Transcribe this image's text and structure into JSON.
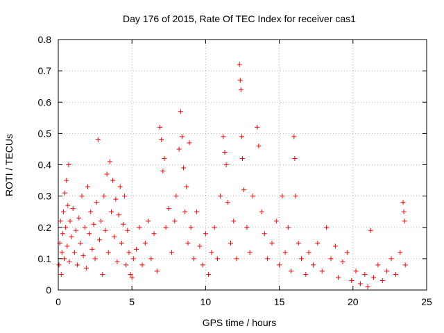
{
  "chart_data": {
    "type": "scatter",
    "title": "Day 176 of 2015, Rate Of TEC Index for receiver cas1",
    "xlabel": "GPS time / hours",
    "ylabel": "ROTI / TECUs",
    "xlim": [
      0,
      25
    ],
    "ylim": [
      0,
      0.8
    ],
    "x_ticks": [
      0,
      5,
      10,
      15,
      20,
      25
    ],
    "y_ticks": [
      0,
      0.1,
      0.2,
      0.3,
      0.4,
      0.5,
      0.6,
      0.7,
      0.8
    ],
    "x_tick_labels": [
      "0",
      "5",
      "10",
      "15",
      "20",
      "25"
    ],
    "y_tick_labels": [
      "0",
      "0.1",
      "0.2",
      "0.3",
      "0.4",
      "0.5",
      "0.6",
      "0.7",
      "0.8"
    ],
    "grid": true,
    "marker": "+",
    "series": [
      {
        "name": "ROTI",
        "color": "#ff0000",
        "points": [
          [
            0.05,
            0.08
          ],
          [
            0.1,
            0.15
          ],
          [
            0.15,
            0.22
          ],
          [
            0.2,
            0.05
          ],
          [
            0.25,
            0.12
          ],
          [
            0.3,
            0.18
          ],
          [
            0.35,
            0.25
          ],
          [
            0.4,
            0.1
          ],
          [
            0.45,
            0.31
          ],
          [
            0.5,
            0.2
          ],
          [
            0.55,
            0.35
          ],
          [
            0.6,
            0.14
          ],
          [
            0.65,
            0.27
          ],
          [
            0.7,
            0.4
          ],
          [
            0.75,
            0.09
          ],
          [
            0.8,
            0.22
          ],
          [
            0.9,
            0.17
          ],
          [
            1.0,
            0.26
          ],
          [
            1.1,
            0.12
          ],
          [
            1.2,
            0.19
          ],
          [
            1.3,
            0.08
          ],
          [
            1.4,
            0.23
          ],
          [
            1.5,
            0.15
          ],
          [
            1.6,
            0.3
          ],
          [
            1.7,
            0.11
          ],
          [
            1.8,
            0.2
          ],
          [
            1.9,
            0.07
          ],
          [
            2.0,
            0.33
          ],
          [
            2.1,
            0.18
          ],
          [
            2.2,
            0.25
          ],
          [
            2.3,
            0.13
          ],
          [
            2.4,
            0.21
          ],
          [
            2.5,
            0.1
          ],
          [
            2.6,
            0.28
          ],
          [
            2.7,
            0.48
          ],
          [
            2.8,
            0.16
          ],
          [
            2.9,
            0.22
          ],
          [
            3.0,
            0.05
          ],
          [
            3.1,
            0.3
          ],
          [
            3.2,
            0.19
          ],
          [
            3.3,
            0.37
          ],
          [
            3.4,
            0.12
          ],
          [
            3.5,
            0.41
          ],
          [
            3.6,
            0.25
          ],
          [
            3.7,
            0.35
          ],
          [
            3.8,
            0.17
          ],
          [
            3.9,
            0.29
          ],
          [
            4.0,
            0.09
          ],
          [
            4.1,
            0.24
          ],
          [
            4.2,
            0.33
          ],
          [
            4.3,
            0.15
          ],
          [
            4.4,
            0.21
          ],
          [
            4.5,
            0.3
          ],
          [
            4.6,
            0.08
          ],
          [
            4.7,
            0.19
          ],
          [
            4.8,
            0.12
          ],
          [
            4.9,
            0.05
          ],
          [
            5.0,
            0.04
          ],
          [
            5.1,
            0.1
          ],
          [
            5.3,
            0.13
          ],
          [
            5.5,
            0.2
          ],
          [
            5.7,
            0.08
          ],
          [
            5.9,
            0.15
          ],
          [
            6.1,
            0.22
          ],
          [
            6.3,
            0.1
          ],
          [
            6.5,
            0.18
          ],
          [
            6.7,
            0.06
          ],
          [
            6.9,
            0.52
          ],
          [
            7.0,
            0.48
          ],
          [
            7.1,
            0.38
          ],
          [
            7.2,
            0.42
          ],
          [
            7.3,
            0.2
          ],
          [
            7.5,
            0.26
          ],
          [
            7.7,
            0.12
          ],
          [
            7.9,
            0.22
          ],
          [
            8.0,
            0.3
          ],
          [
            8.2,
            0.45
          ],
          [
            8.3,
            0.57
          ],
          [
            8.4,
            0.49
          ],
          [
            8.5,
            0.39
          ],
          [
            8.6,
            0.25
          ],
          [
            8.7,
            0.33
          ],
          [
            8.8,
            0.15
          ],
          [
            8.9,
            0.47
          ],
          [
            9.0,
            0.2
          ],
          [
            9.2,
            0.1
          ],
          [
            9.4,
            0.25
          ],
          [
            9.6,
            0.14
          ],
          [
            9.8,
            0.08
          ],
          [
            10.0,
            0.18
          ],
          [
            10.2,
            0.05
          ],
          [
            10.4,
            0.12
          ],
          [
            10.6,
            0.2
          ],
          [
            10.8,
            0.1
          ],
          [
            11.0,
            0.3
          ],
          [
            11.2,
            0.49
          ],
          [
            11.3,
            0.44
          ],
          [
            11.4,
            0.4
          ],
          [
            11.5,
            0.28
          ],
          [
            11.7,
            0.15
          ],
          [
            11.9,
            0.22
          ],
          [
            12.1,
            0.1
          ],
          [
            12.3,
            0.72
          ],
          [
            12.35,
            0.67
          ],
          [
            12.4,
            0.64
          ],
          [
            12.45,
            0.49
          ],
          [
            12.5,
            0.42
          ],
          [
            12.6,
            0.32
          ],
          [
            12.8,
            0.2
          ],
          [
            13.0,
            0.12
          ],
          [
            13.2,
            0.3
          ],
          [
            13.5,
            0.52
          ],
          [
            13.6,
            0.46
          ],
          [
            13.8,
            0.25
          ],
          [
            14.0,
            0.18
          ],
          [
            14.2,
            0.1
          ],
          [
            14.5,
            0.15
          ],
          [
            14.8,
            0.22
          ],
          [
            15.0,
            0.08
          ],
          [
            15.2,
            0.3
          ],
          [
            15.4,
            0.12
          ],
          [
            15.6,
            0.2
          ],
          [
            15.8,
            0.06
          ],
          [
            16.0,
            0.49
          ],
          [
            16.05,
            0.42
          ],
          [
            16.1,
            0.3
          ],
          [
            16.3,
            0.15
          ],
          [
            16.5,
            0.1
          ],
          [
            16.8,
            0.05
          ],
          [
            17.0,
            0.12
          ],
          [
            17.3,
            0.08
          ],
          [
            17.6,
            0.15
          ],
          [
            17.9,
            0.06
          ],
          [
            18.2,
            0.2
          ],
          [
            18.5,
            0.1
          ],
          [
            18.8,
            0.14
          ],
          [
            19.0,
            0.04
          ],
          [
            19.3,
            0.09
          ],
          [
            19.6,
            0.12
          ],
          [
            19.9,
            0.03
          ],
          [
            20.2,
            0.06
          ],
          [
            20.5,
            0.02
          ],
          [
            20.8,
            0.05
          ],
          [
            21.0,
            0.01
          ],
          [
            21.2,
            0.19
          ],
          [
            21.4,
            0.04
          ],
          [
            21.7,
            0.08
          ],
          [
            22.0,
            0.03
          ],
          [
            22.3,
            0.06
          ],
          [
            22.6,
            0.1
          ],
          [
            22.9,
            0.05
          ],
          [
            23.2,
            0.12
          ],
          [
            23.4,
            0.28
          ],
          [
            23.45,
            0.25
          ],
          [
            23.5,
            0.22
          ],
          [
            23.55,
            0.08
          ]
        ]
      }
    ]
  }
}
